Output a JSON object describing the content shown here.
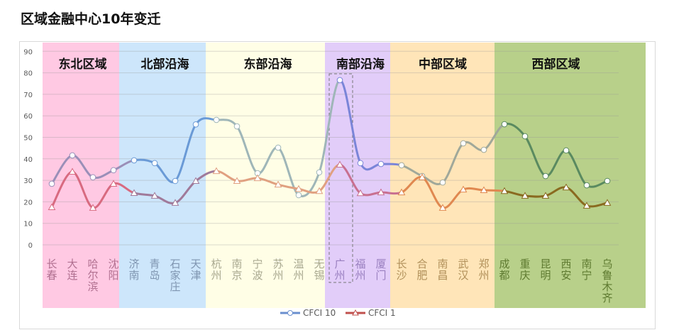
{
  "chart_data": {
    "type": "line",
    "title": "区域金融中心10年变迁",
    "ylim": [
      0,
      90
    ],
    "yticks": [
      0,
      10,
      20,
      30,
      40,
      50,
      60,
      70,
      80,
      90
    ],
    "grid": true,
    "legend_position": "bottom",
    "categories": [
      "长春",
      "大连",
      "哈尔滨",
      "沈阳",
      "济南",
      "青岛",
      "石家庄",
      "天津",
      "杭州",
      "南京",
      "宁波",
      "苏州",
      "温州",
      "无锡",
      "广州",
      "福州",
      "厦门",
      "长沙",
      "合肥",
      "南昌",
      "武汉",
      "郑州",
      "成都",
      "重庆",
      "昆明",
      "西安",
      "南宁",
      "乌鲁木齐"
    ],
    "regions": [
      {
        "name": "东北区域",
        "start": 0,
        "end": 3,
        "bg": "#ffc9e3",
        "label_color": "#b07090",
        "c1": "#9a8fb8",
        "c2": "#d86a80"
      },
      {
        "name": "北部沿海",
        "start": 4,
        "end": 7,
        "bg": "#cde6fb",
        "label_color": "#7f95b0",
        "c1": "#6a9ad6",
        "c2": "#a07a9a"
      },
      {
        "name": "东部沿海",
        "start": 8,
        "end": 13,
        "bg": "#fffee6",
        "label_color": "#a8a890",
        "c1": "#9fb6b8",
        "c2": "#e0a080"
      },
      {
        "name": "南部沿海",
        "start": 14,
        "end": 16,
        "bg": "#e2cdf9",
        "label_color": "#9a80c0",
        "c1": "#7a85d8",
        "c2": "#c87090"
      },
      {
        "name": "中部区域",
        "start": 17,
        "end": 21,
        "bg": "#ffe5b8",
        "label_color": "#b0905a",
        "c1": "#a0a89a",
        "c2": "#e08850"
      },
      {
        "name": "西部区域",
        "start": 22,
        "end": 27,
        "bg": "#b8d08a",
        "label_color": "#5e7a30",
        "c1": "#5a8a60",
        "c2": "#8a6a20"
      }
    ],
    "highlight": "广州",
    "series": [
      {
        "name": "CFCI 10",
        "marker": "circle",
        "color": "#6a8fcf",
        "values": [
          28.4,
          41.6,
          31.4,
          34.7,
          39.3,
          38,
          29.7,
          56,
          58.1,
          55.1,
          33.3,
          45.2,
          23.1,
          33.7,
          76.6,
          38,
          37.6,
          37,
          32,
          29,
          47.2,
          44.2,
          56.1,
          50.5,
          32,
          43.9,
          27.7,
          29.7
        ]
      },
      {
        "name": "CFCI 1",
        "marker": "triangle",
        "color": "#c0504d",
        "values": [
          17.5,
          34,
          17.2,
          28.4,
          24.1,
          22.8,
          19.5,
          29.7,
          34.3,
          29.7,
          31,
          28,
          26,
          25,
          37.3,
          24,
          24.4,
          24.4,
          31.4,
          17.2,
          25.7,
          25.4,
          25,
          22.8,
          22.8,
          26.7,
          18.2,
          19.5
        ]
      }
    ]
  }
}
